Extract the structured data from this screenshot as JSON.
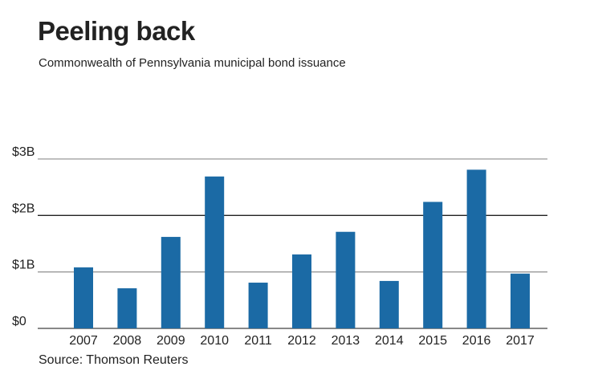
{
  "chart_data": {
    "type": "bar",
    "title": "Peeling back",
    "subtitle": "Commonwealth of Pennsylvania municipal bond issuance",
    "source": "Source: Thomson Reuters",
    "xlabel": "",
    "ylabel": "",
    "categories": [
      "2007",
      "2008",
      "2009",
      "2010",
      "2011",
      "2012",
      "2013",
      "2014",
      "2015",
      "2016",
      "2017"
    ],
    "values": [
      1.08,
      0.71,
      1.62,
      2.69,
      0.81,
      1.31,
      1.71,
      0.84,
      2.24,
      2.81,
      0.97
    ],
    "unit": "billion USD",
    "ylim": [
      0,
      3
    ],
    "yticks": [
      0,
      1,
      2,
      3
    ],
    "ytick_labels": [
      "$0",
      "$1B",
      "$2B",
      "$3B"
    ],
    "grid": true,
    "bar_color": "#1b6aa5"
  }
}
